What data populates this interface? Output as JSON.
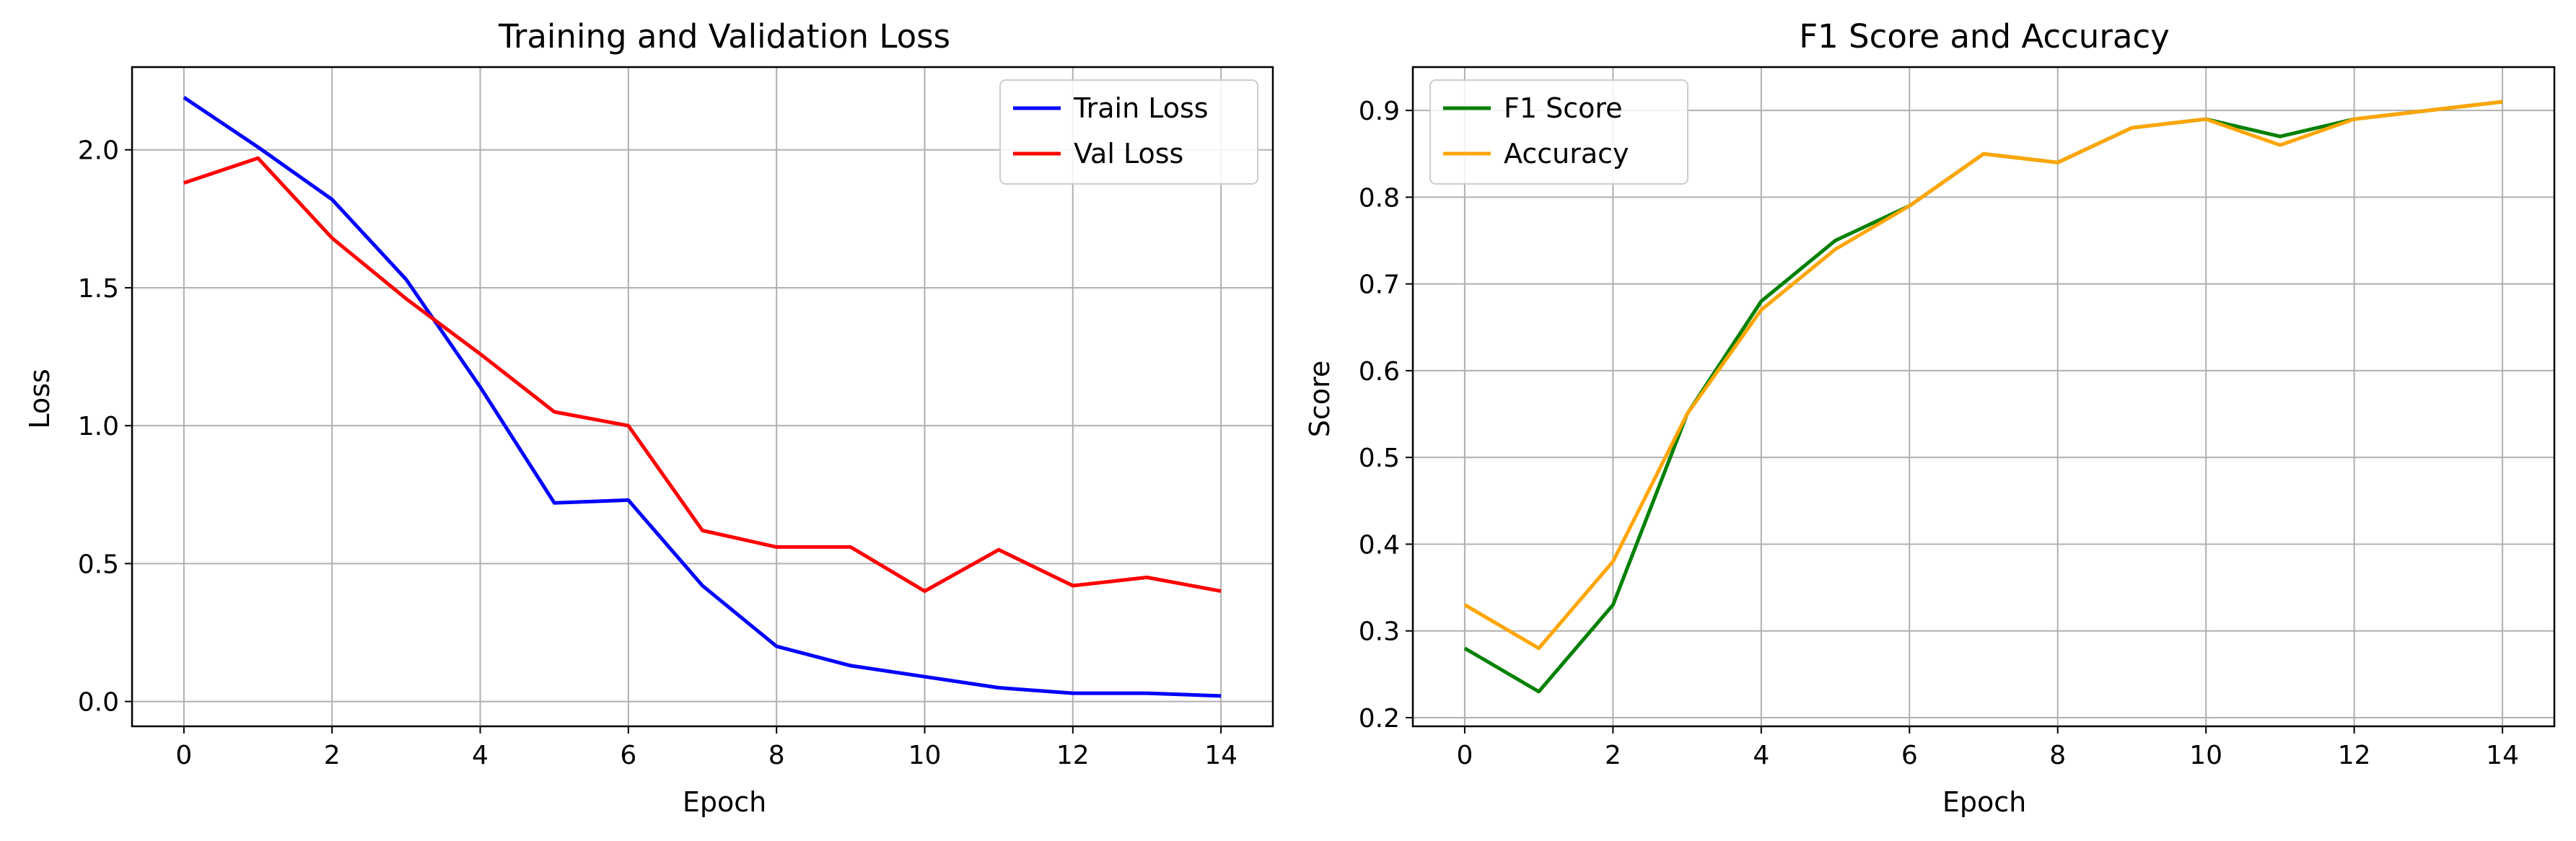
{
  "chart_data": [
    {
      "type": "line",
      "title": "Training and Validation Loss",
      "xlabel": "Epoch",
      "ylabel": "Loss",
      "xlim": [
        -0.7,
        14.7
      ],
      "ylim": [
        -0.09,
        2.3
      ],
      "xticks": [
        0,
        2,
        4,
        6,
        8,
        10,
        12,
        14
      ],
      "yticks": [
        0.0,
        0.5,
        1.0,
        1.5,
        2.0
      ],
      "ytick_labels": [
        "0.0",
        "0.5",
        "1.0",
        "1.5",
        "2.0"
      ],
      "grid": true,
      "legend_position": "upper right",
      "x": [
        0,
        1,
        2,
        3,
        4,
        5,
        6,
        7,
        8,
        9,
        10,
        11,
        12,
        13,
        14
      ],
      "series": [
        {
          "name": "Train Loss",
          "color": "#0000ff",
          "values": [
            2.19,
            2.01,
            1.82,
            1.53,
            1.14,
            0.72,
            0.73,
            0.42,
            0.2,
            0.13,
            0.09,
            0.05,
            0.03,
            0.03,
            0.02
          ]
        },
        {
          "name": "Val Loss",
          "color": "#ff0000",
          "values": [
            1.88,
            1.97,
            1.68,
            1.46,
            1.26,
            1.05,
            1.0,
            0.62,
            0.56,
            0.56,
            0.4,
            0.55,
            0.42,
            0.45,
            0.4
          ]
        }
      ]
    },
    {
      "type": "line",
      "title": "F1 Score and Accuracy",
      "xlabel": "Epoch",
      "ylabel": "Score",
      "xlim": [
        -0.7,
        14.7
      ],
      "ylim": [
        0.19,
        0.95
      ],
      "xticks": [
        0,
        2,
        4,
        6,
        8,
        10,
        12,
        14
      ],
      "yticks": [
        0.2,
        0.3,
        0.4,
        0.5,
        0.6,
        0.7,
        0.8,
        0.9
      ],
      "ytick_labels": [
        "0.2",
        "0.3",
        "0.4",
        "0.5",
        "0.6",
        "0.7",
        "0.8",
        "0.9"
      ],
      "grid": true,
      "legend_position": "upper left",
      "x": [
        0,
        1,
        2,
        3,
        4,
        5,
        6,
        7,
        8,
        9,
        10,
        11,
        12,
        13,
        14
      ],
      "series": [
        {
          "name": "F1 Score",
          "color": "#008000",
          "values": [
            0.28,
            0.23,
            0.33,
            0.55,
            0.68,
            0.75,
            0.79,
            0.85,
            0.84,
            0.88,
            0.89,
            0.87,
            0.89,
            0.9,
            0.91
          ]
        },
        {
          "name": "Accuracy",
          "color": "#ffa500",
          "values": [
            0.33,
            0.28,
            0.38,
            0.55,
            0.67,
            0.74,
            0.79,
            0.85,
            0.84,
            0.88,
            0.89,
            0.86,
            0.89,
            0.9,
            0.91
          ]
        }
      ]
    }
  ]
}
